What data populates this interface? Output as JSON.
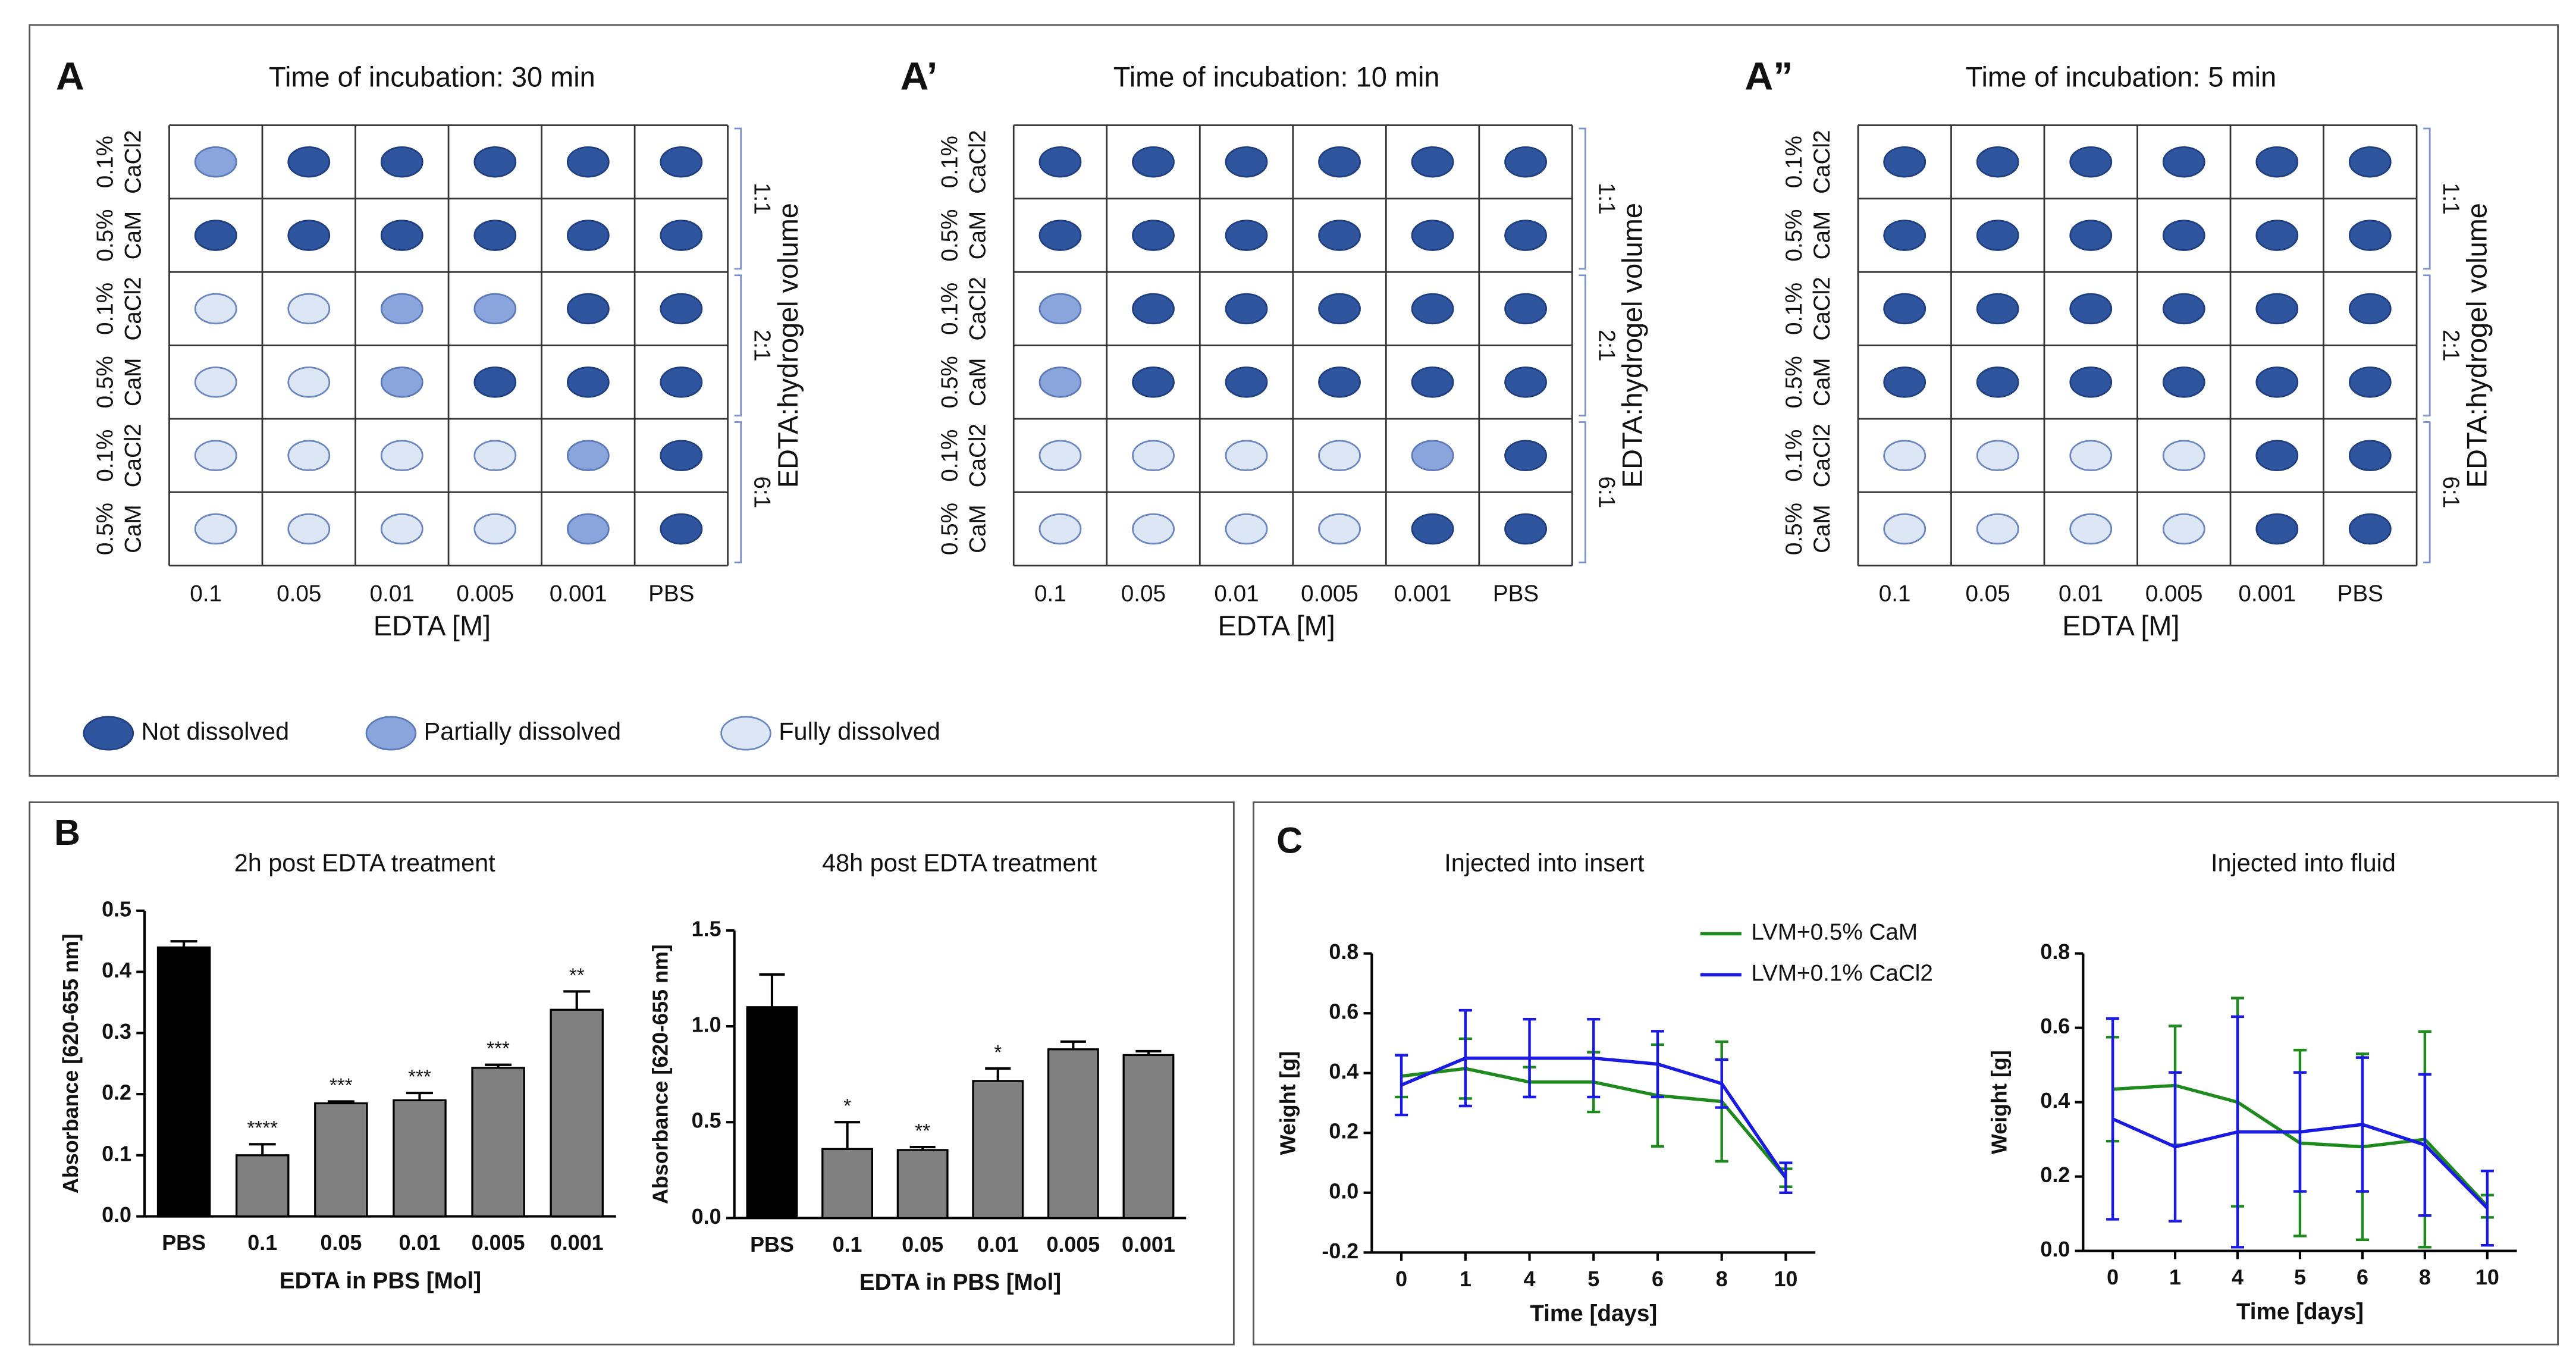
{
  "grid": {
    "row_labels": [
      [
        "0.1%",
        "CaCl2"
      ],
      [
        "0.5%",
        "CaM"
      ]
    ],
    "columns": [
      "0.1",
      "0.05",
      "0.01",
      "0.005",
      "0.001",
      "PBS"
    ],
    "x_label": "EDTA [M]",
    "groups": [
      "1:1",
      "2:1",
      "6:1"
    ],
    "group_axis_label": "EDTA:hydrogel volume",
    "legend": [
      {
        "label": "Not dissolved",
        "color": "#2e559e"
      },
      {
        "label": "Partially dissolved",
        "color": "#8aa5dc"
      },
      {
        "label": "Fully dissolved",
        "color": "#dde6f4"
      }
    ]
  },
  "panels": [
    {
      "letter": "A",
      "title": "Time of incubation: 30 min",
      "cells": [
        [
          1,
          0,
          0,
          0,
          0,
          0
        ],
        [
          0,
          0,
          0,
          0,
          0,
          0
        ],
        [
          2,
          2,
          1,
          1,
          0,
          0
        ],
        [
          2,
          2,
          1,
          0,
          0,
          0
        ],
        [
          2,
          2,
          2,
          2,
          1,
          0
        ],
        [
          2,
          2,
          2,
          2,
          1,
          0
        ]
      ]
    },
    {
      "letter": "A’",
      "title": "Time of incubation: 10 min",
      "cells": [
        [
          0,
          0,
          0,
          0,
          0,
          0
        ],
        [
          0,
          0,
          0,
          0,
          0,
          0
        ],
        [
          1,
          0,
          0,
          0,
          0,
          0
        ],
        [
          1,
          0,
          0,
          0,
          0,
          0
        ],
        [
          2,
          2,
          2,
          2,
          1,
          0
        ],
        [
          2,
          2,
          2,
          2,
          0,
          0
        ]
      ]
    },
    {
      "letter": "A”",
      "title": "Time of incubation: 5 min",
      "cells": [
        [
          0,
          0,
          0,
          0,
          0,
          0
        ],
        [
          0,
          0,
          0,
          0,
          0,
          0
        ],
        [
          0,
          0,
          0,
          0,
          0,
          0
        ],
        [
          0,
          0,
          0,
          0,
          0,
          0
        ],
        [
          2,
          2,
          2,
          2,
          0,
          0
        ],
        [
          2,
          2,
          2,
          2,
          0,
          0
        ]
      ]
    }
  ],
  "section_letters": [
    "B",
    "C"
  ],
  "chart_data": [
    {
      "type": "bar",
      "title": "2h post EDTA treatment",
      "x_label": "EDTA in PBS [Mol]",
      "y_label": "Absorbance [620-655 nm]",
      "categories": [
        "PBS",
        "0.1",
        "0.05",
        "0.01",
        "0.005",
        "0.001"
      ],
      "values": [
        0.44,
        0.1,
        0.185,
        0.19,
        0.243,
        0.338
      ],
      "errors": [
        0.01,
        0.018,
        0.003,
        0.012,
        0.005,
        0.03
      ],
      "annotations": [
        null,
        "****",
        "***",
        "***",
        "***",
        "**"
      ],
      "colors": [
        "#000000",
        "#808080",
        "#808080",
        "#808080",
        "#808080",
        "#808080"
      ],
      "ylim": [
        0,
        0.5
      ],
      "yticks": [
        {
          "value": 0,
          "label": "0.0"
        },
        0.1,
        0.2,
        0.3,
        0.4,
        0.5
      ]
    },
    {
      "type": "bar",
      "title": "48h post EDTA treatment",
      "x_label": "EDTA in PBS [Mol]",
      "y_label": "Absorbance [620-655 nm]",
      "categories": [
        "PBS",
        "0.1",
        "0.05",
        "0.01",
        "0.005",
        "0.001"
      ],
      "values": [
        1.1,
        0.36,
        0.355,
        0.715,
        0.88,
        0.85
      ],
      "errors": [
        0.17,
        0.14,
        0.015,
        0.065,
        0.04,
        0.02
      ],
      "annotations": [
        null,
        "*",
        "**",
        "*",
        null,
        null
      ],
      "colors": [
        "#000000",
        "#808080",
        "#808080",
        "#808080",
        "#808080",
        "#808080"
      ],
      "ylim": [
        0,
        1.5
      ],
      "yticks": [
        {
          "value": 0,
          "label": "0.0"
        },
        0.5,
        {
          "value": 1,
          "label": "1.0"
        },
        1.5
      ]
    },
    {
      "type": "line",
      "title": "Injected into insert",
      "x_label": "Time [days]",
      "y_label": "Weight [g]",
      "categories": [
        "0",
        "1",
        "4",
        "5",
        "6",
        "8",
        "10"
      ],
      "series": [
        {
          "name": "LVM+0.5% CaM",
          "color": "#1e8a1e",
          "values": [
            0.39,
            0.415,
            0.37,
            0.37,
            0.325,
            0.305,
            0.05
          ],
          "errors": [
            0.07,
            0.1,
            0.05,
            0.1,
            0.17,
            0.2,
            0.03
          ]
        },
        {
          "name": "LVM+0.1% CaCl2",
          "color": "#1a1ae0",
          "values": [
            0.36,
            0.45,
            0.45,
            0.45,
            0.43,
            0.365,
            0.05
          ],
          "errors": [
            0.1,
            0.16,
            0.13,
            0.13,
            0.11,
            0.08,
            0.05
          ]
        }
      ],
      "ylim": [
        -0.2,
        0.8
      ],
      "yticks": [
        -0.2,
        {
          "value": 0,
          "label": "0.0"
        },
        0.2,
        0.4,
        0.6,
        0.8
      ]
    },
    {
      "type": "line",
      "title": "Injected into fluid",
      "x_label": "Time [days]",
      "y_label": "Weight [g]",
      "categories": [
        "0",
        "1",
        "4",
        "5",
        "6",
        "8",
        "10"
      ],
      "series": [
        {
          "color": "#1e8a1e",
          "values": [
            0.435,
            0.445,
            0.4,
            0.29,
            0.28,
            0.3,
            0.12
          ],
          "errors": [
            0.14,
            0.16,
            0.28,
            0.25,
            0.25,
            0.29,
            0.03
          ]
        },
        {
          "color": "#1a1ae0",
          "values": [
            0.355,
            0.28,
            0.32,
            0.32,
            0.34,
            0.285,
            0.115
          ],
          "errors": [
            0.27,
            0.2,
            0.31,
            0.16,
            0.18,
            0.19,
            0.1
          ]
        }
      ],
      "ylim": [
        0,
        0.8
      ],
      "yticks": [
        {
          "value": 0,
          "label": "0.0"
        },
        0.2,
        0.4,
        0.6,
        0.8
      ]
    }
  ]
}
